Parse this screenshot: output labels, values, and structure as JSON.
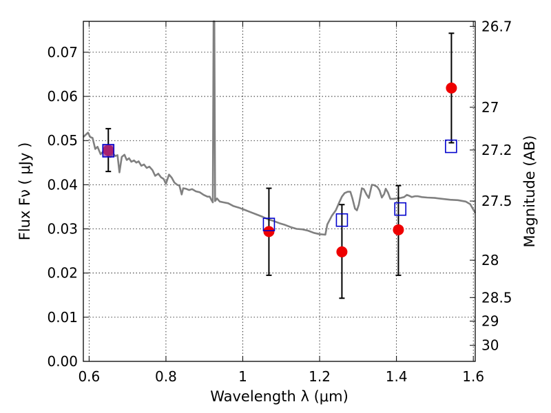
{
  "chart_data": {
    "type": "scatter",
    "xlabel": "Wavelength  λ (μm)",
    "ylabel": "Flux  Fν  ( μJy )",
    "ylabel_right": "Magnitude (AB)",
    "xlim": [
      0.585,
      1.605
    ],
    "ylim": [
      0.0,
      0.077
    ],
    "grid": true,
    "x_ticks": [
      {
        "value": 0.6,
        "label": "0.6"
      },
      {
        "value": 0.8,
        "label": "0.8"
      },
      {
        "value": 1.0,
        "label": "1"
      },
      {
        "value": 1.2,
        "label": "1.2"
      },
      {
        "value": 1.4,
        "label": "1.4"
      },
      {
        "value": 1.6,
        "label": "1.6"
      }
    ],
    "y_ticks": [
      {
        "value": 0.0,
        "label": "0.00"
      },
      {
        "value": 0.01,
        "label": "0.01"
      },
      {
        "value": 0.02,
        "label": "0.02"
      },
      {
        "value": 0.03,
        "label": "0.03"
      },
      {
        "value": 0.04,
        "label": "0.04"
      },
      {
        "value": 0.05,
        "label": "0.05"
      },
      {
        "value": 0.06,
        "label": "0.06"
      },
      {
        "value": 0.07,
        "label": "0.07"
      }
    ],
    "mag_ticks": [
      {
        "mag": 26.7,
        "label": "26.7"
      },
      {
        "mag": 27.0,
        "label": "27"
      },
      {
        "mag": 27.2,
        "label": "27.2"
      },
      {
        "mag": 27.5,
        "label": "27.5"
      },
      {
        "mag": 28.0,
        "label": "28"
      },
      {
        "mag": 28.5,
        "label": "28.5"
      },
      {
        "mag": 29.0,
        "label": "29"
      },
      {
        "mag": 30.0,
        "label": "30"
      }
    ],
    "series": [
      {
        "kind": "line",
        "color": "#808080",
        "points": [
          [
            0.585,
            0.0508
          ],
          [
            0.597,
            0.0518
          ],
          [
            0.603,
            0.0508
          ],
          [
            0.609,
            0.0506
          ],
          [
            0.616,
            0.0481
          ],
          [
            0.622,
            0.0486
          ],
          [
            0.63,
            0.0469
          ],
          [
            0.636,
            0.0475
          ],
          [
            0.643,
            0.047
          ],
          [
            0.649,
            0.0465
          ],
          [
            0.656,
            0.0463
          ],
          [
            0.662,
            0.0471
          ],
          [
            0.668,
            0.0465
          ],
          [
            0.674,
            0.0467
          ],
          [
            0.679,
            0.0428
          ],
          [
            0.685,
            0.0463
          ],
          [
            0.692,
            0.0468
          ],
          [
            0.698,
            0.0456
          ],
          [
            0.704,
            0.046
          ],
          [
            0.71,
            0.0452
          ],
          [
            0.717,
            0.0455
          ],
          [
            0.723,
            0.045
          ],
          [
            0.729,
            0.0453
          ],
          [
            0.736,
            0.0443
          ],
          [
            0.743,
            0.0446
          ],
          [
            0.75,
            0.0438
          ],
          [
            0.757,
            0.0441
          ],
          [
            0.765,
            0.0433
          ],
          [
            0.772,
            0.042
          ],
          [
            0.78,
            0.0425
          ],
          [
            0.787,
            0.0417
          ],
          [
            0.794,
            0.0413
          ],
          [
            0.8,
            0.0402
          ],
          [
            0.808,
            0.0423
          ],
          [
            0.815,
            0.0416
          ],
          [
            0.822,
            0.0405
          ],
          [
            0.829,
            0.04
          ],
          [
            0.835,
            0.0398
          ],
          [
            0.841,
            0.0378
          ],
          [
            0.845,
            0.0392
          ],
          [
            0.852,
            0.0391
          ],
          [
            0.86,
            0.0388
          ],
          [
            0.868,
            0.039
          ],
          [
            0.878,
            0.0385
          ],
          [
            0.888,
            0.0383
          ],
          [
            0.898,
            0.0377
          ],
          [
            0.908,
            0.0373
          ],
          [
            0.914,
            0.0373
          ],
          [
            0.918,
            0.0366
          ],
          [
            0.922,
            0.036
          ],
          [
            0.924,
            0.077
          ],
          [
            0.926,
            0.077
          ],
          [
            0.928,
            0.0363
          ],
          [
            0.933,
            0.0369
          ],
          [
            0.94,
            0.0362
          ],
          [
            0.95,
            0.036
          ],
          [
            0.962,
            0.0358
          ],
          [
            0.975,
            0.0352
          ],
          [
            0.99,
            0.0348
          ],
          [
            1.005,
            0.0343
          ],
          [
            1.02,
            0.0338
          ],
          [
            1.035,
            0.0333
          ],
          [
            1.05,
            0.0328
          ],
          [
            1.065,
            0.0322
          ],
          [
            1.08,
            0.0318
          ],
          [
            1.095,
            0.0313
          ],
          [
            1.11,
            0.0309
          ],
          [
            1.125,
            0.0304
          ],
          [
            1.14,
            0.03
          ],
          [
            1.155,
            0.0299
          ],
          [
            1.17,
            0.0296
          ],
          [
            1.185,
            0.0291
          ],
          [
            1.2,
            0.0288
          ],
          [
            1.215,
            0.0287
          ],
          [
            1.22,
            0.031
          ],
          [
            1.232,
            0.033
          ],
          [
            1.242,
            0.0342
          ],
          [
            1.25,
            0.0358
          ],
          [
            1.258,
            0.0373
          ],
          [
            1.265,
            0.0381
          ],
          [
            1.273,
            0.0384
          ],
          [
            1.28,
            0.0384
          ],
          [
            1.285,
            0.037
          ],
          [
            1.292,
            0.0346
          ],
          [
            1.297,
            0.0342
          ],
          [
            1.302,
            0.0355
          ],
          [
            1.31,
            0.0392
          ],
          [
            1.315,
            0.039
          ],
          [
            1.322,
            0.0378
          ],
          [
            1.328,
            0.037
          ],
          [
            1.336,
            0.04
          ],
          [
            1.342,
            0.0399
          ],
          [
            1.35,
            0.0395
          ],
          [
            1.356,
            0.0387
          ],
          [
            1.362,
            0.0371
          ],
          [
            1.368,
            0.0379
          ],
          [
            1.372,
            0.0391
          ],
          [
            1.378,
            0.0382
          ],
          [
            1.384,
            0.0368
          ],
          [
            1.392,
            0.0368
          ],
          [
            1.4,
            0.0369
          ],
          [
            1.41,
            0.037
          ],
          [
            1.42,
            0.0372
          ],
          [
            1.427,
            0.0377
          ],
          [
            1.433,
            0.0375
          ],
          [
            1.44,
            0.0372
          ],
          [
            1.448,
            0.0374
          ],
          [
            1.456,
            0.0374
          ],
          [
            1.466,
            0.0372
          ],
          [
            1.48,
            0.0371
          ],
          [
            1.5,
            0.037
          ],
          [
            1.52,
            0.0368
          ],
          [
            1.54,
            0.0366
          ],
          [
            1.56,
            0.0365
          ],
          [
            1.58,
            0.0362
          ],
          [
            1.592,
            0.0356
          ],
          [
            1.605,
            0.0336
          ]
        ]
      },
      {
        "kind": "points-with-errorbars",
        "marker": "circle",
        "color": "#ee0000",
        "points": [
          {
            "x": 0.65,
            "y": 0.0478,
            "ylo": 0.043,
            "yhi": 0.0527
          },
          {
            "x": 1.068,
            "y": 0.0294,
            "ylo": 0.0195,
            "yhi": 0.0392
          },
          {
            "x": 1.258,
            "y": 0.0248,
            "ylo": 0.0143,
            "yhi": 0.0355
          },
          {
            "x": 1.405,
            "y": 0.0298,
            "ylo": 0.0195,
            "yhi": 0.0398
          },
          {
            "x": 1.543,
            "y": 0.0619,
            "ylo": 0.0495,
            "yhi": 0.0743
          }
        ]
      },
      {
        "kind": "points",
        "marker": "open-square",
        "color": "#0000cc",
        "points": [
          {
            "x": 0.65,
            "y": 0.0477
          },
          {
            "x": 1.068,
            "y": 0.031
          },
          {
            "x": 1.258,
            "y": 0.032
          },
          {
            "x": 1.41,
            "y": 0.0345
          },
          {
            "x": 1.542,
            "y": 0.0487
          }
        ]
      }
    ]
  }
}
